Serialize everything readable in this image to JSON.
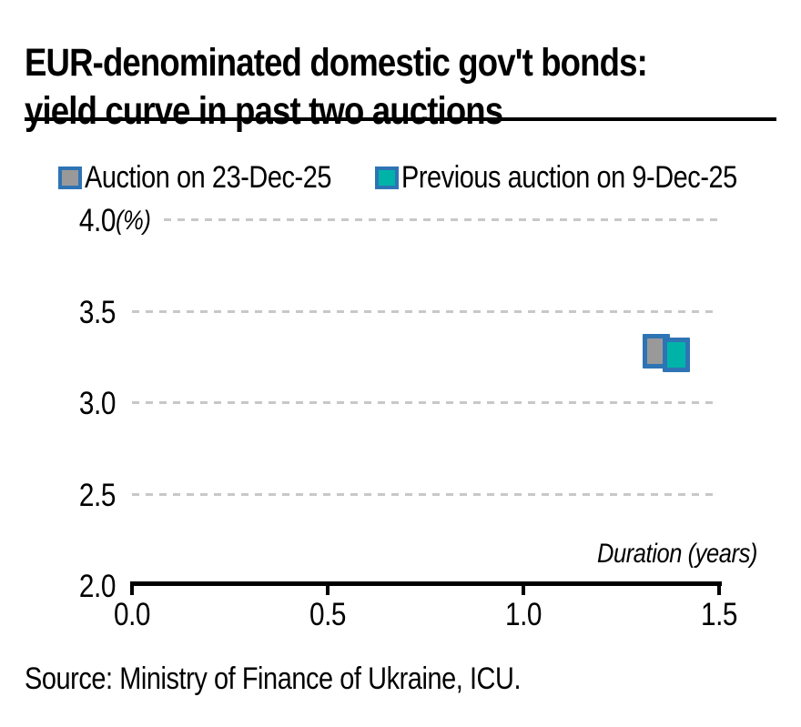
{
  "title": {
    "line1": "EUR-denominated domestic gov't bonds:",
    "line2": "yield curve in past two auctions"
  },
  "legend": [
    {
      "label": "Auction on 23-Dec-25",
      "fill": "#999999",
      "border": "#2E74B5"
    },
    {
      "label": "Previous auction on 9-Dec-25",
      "fill": "#00B3A9",
      "border": "#2E74B5"
    }
  ],
  "source": "Source: Ministry of Finance of Ukraine, ICU.",
  "chart_data": {
    "type": "scatter",
    "title": "EUR-denominated domestic gov't bonds: yield curve in past two auctions",
    "xlabel": "Duration (years)",
    "ylabel": "(%)",
    "xlim": [
      0.0,
      1.5
    ],
    "ylim": [
      2.0,
      4.0
    ],
    "x_ticks": [
      "0.0",
      "0.5",
      "1.0",
      "1.5"
    ],
    "y_ticks": [
      "4.0",
      "3.5",
      "3.0",
      "2.5",
      "2.0"
    ],
    "grid": "horizontal-dashed",
    "grid_color": "#c8c8c8",
    "legend_position": "top",
    "marker_border_color": "#2E74B5",
    "series": [
      {
        "name": "Auction on 23-Dec-25",
        "marker": "square",
        "fill": "#999999",
        "points": [
          {
            "x": 1.34,
            "y": 3.28
          }
        ]
      },
      {
        "name": "Previous auction on 9-Dec-25",
        "marker": "square",
        "fill": "#00B3A9",
        "points": [
          {
            "x": 1.39,
            "y": 3.26
          }
        ]
      }
    ]
  }
}
